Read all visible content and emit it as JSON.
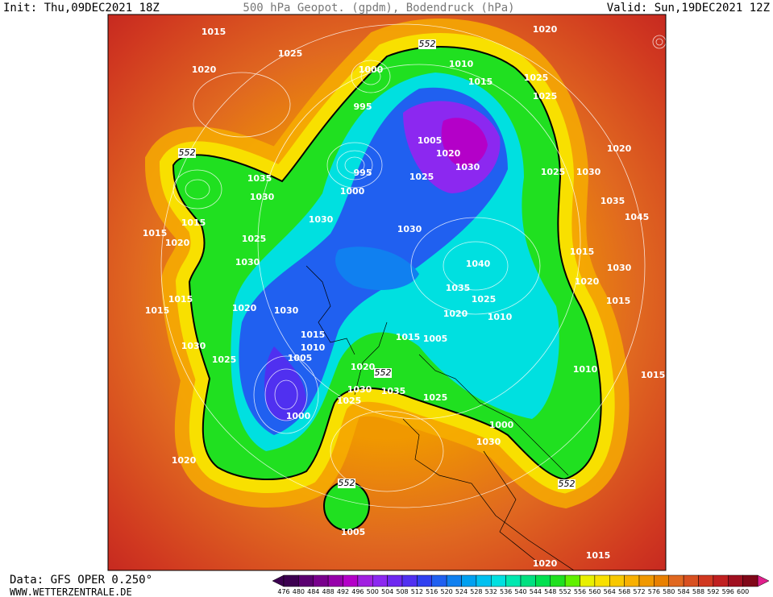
{
  "header": {
    "init": "Init: Thu,09DEC2021 18Z",
    "title": "500 hPa Geopot. (gpdm), Bodendruck (hPa)",
    "valid": "Valid: Sun,19DEC2021 12Z"
  },
  "footer": {
    "data": "Data: GFS OPER 0.250°",
    "site": "WWW.WETTERZENTRALE.DE"
  },
  "legend": {
    "labels": [
      476,
      480,
      484,
      488,
      492,
      496,
      500,
      504,
      508,
      512,
      516,
      520,
      524,
      528,
      532,
      536,
      540,
      544,
      548,
      552,
      556,
      560,
      564,
      568,
      572,
      576,
      580,
      584,
      588,
      592,
      596,
      600
    ],
    "colors": [
      "#3c0050",
      "#5a0070",
      "#78008c",
      "#9600aa",
      "#b400c8",
      "#a020e0",
      "#8c28f0",
      "#6e28f0",
      "#5030f0",
      "#3040f0",
      "#2060f0",
      "#1080f0",
      "#00a0f0",
      "#00c0f0",
      "#00e0e0",
      "#00e8b0",
      "#00e080",
      "#00e050",
      "#20e020",
      "#60f000",
      "#e8f000",
      "#f8e000",
      "#f8c800",
      "#f8b000",
      "#f09800",
      "#e88000",
      "#e06820",
      "#d85020",
      "#d03820",
      "#c02020",
      "#a01020",
      "#800818"
    ]
  },
  "pressure_labels": [
    1015,
    1025,
    1020,
    1000,
    1010,
    1015,
    1020,
    1025,
    1025,
    995,
    1005,
    1020,
    1030,
    995,
    1025,
    1000,
    1035,
    1030,
    1015,
    1015,
    1020,
    1025,
    1030,
    1030,
    1030,
    1040,
    1020,
    1030,
    1025,
    1035,
    1045,
    1015,
    1030,
    1020,
    1015,
    1035,
    1025,
    1010,
    1020,
    1030,
    1020,
    1015,
    1015,
    1030,
    1025,
    1015,
    1010,
    1005,
    1015,
    1005,
    1020,
    1030,
    1025,
    1035,
    1025,
    1010,
    1015,
    1000,
    1020,
    1000,
    1030,
    1020,
    1015,
    1005
  ],
  "height_labels": [
    552,
    552,
    552,
    552,
    552
  ]
}
